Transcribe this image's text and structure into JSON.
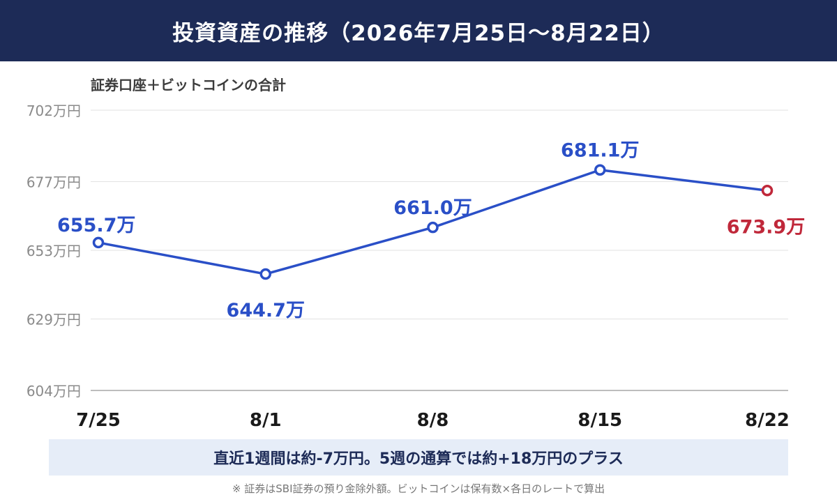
{
  "header": {
    "title": "投資資産の推移（2026年7月25日〜8月22日）"
  },
  "subtitle": "証券口座＋ビットコインの合計",
  "chart_data": {
    "type": "line",
    "title": "投資資産の推移（2026年7月25日〜8月22日）",
    "subtitle": "証券口座＋ビットコインの合計",
    "categories": [
      "7/25",
      "8/1",
      "8/8",
      "8/15",
      "8/22"
    ],
    "series": [
      {
        "values": [
          655.7,
          644.7,
          661.0,
          681.1,
          673.9
        ]
      }
    ],
    "data_labels": [
      "655.7万",
      "644.7万",
      "661.0万",
      "681.1万",
      "673.9万"
    ],
    "y_ticks": [
      604,
      629,
      653,
      677,
      702
    ],
    "y_tick_labels": [
      "604万円",
      "629万円",
      "653万円",
      "677万円",
      "702万円"
    ],
    "ylim": [
      604,
      702
    ],
    "grid": true,
    "legend": "none",
    "colors": {
      "line": "#2a4fc7",
      "latest": "#c0283a",
      "grid": "#e2e2e2",
      "axis": "#bdbdbd"
    }
  },
  "summary": {
    "text": "直近1週間は約-7万円。5週の通算では約+18万円のプラス"
  },
  "footnote": "※ 証券はSBI証券の預り金除外額。ビットコインは保有数×各日のレートで算出"
}
